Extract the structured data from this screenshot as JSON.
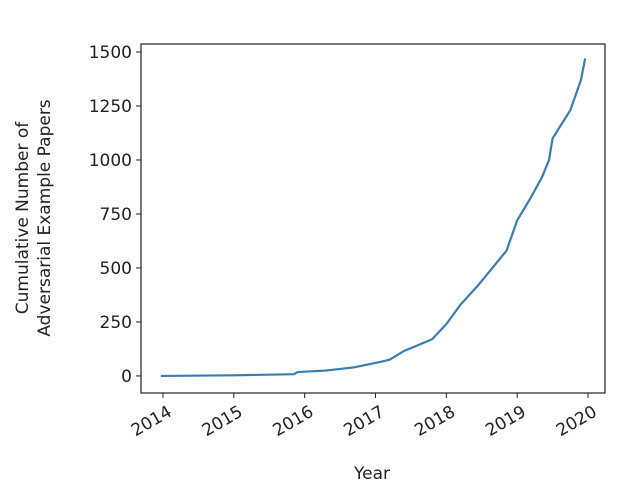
{
  "chart_data": {
    "type": "line",
    "xlabel": "Year",
    "ylabel": [
      "Cumulative Number of",
      "Adversarial Example Papers"
    ],
    "x": [
      2013.97,
      2015.0,
      2015.85,
      2015.9,
      2016.3,
      2016.7,
      2017.0,
      2017.2,
      2017.4,
      2017.8,
      2018.0,
      2018.2,
      2018.45,
      2018.6,
      2018.85,
      2019.0,
      2019.2,
      2019.35,
      2019.45,
      2019.5,
      2019.75,
      2019.9,
      2019.96
    ],
    "series": [
      {
        "color": "#3a7db5",
        "values": [
          0,
          3,
          8,
          18,
          25,
          40,
          60,
          75,
          115,
          170,
          240,
          330,
          420,
          480,
          580,
          720,
          830,
          920,
          1000,
          1100,
          1230,
          1370,
          1470
        ]
      }
    ],
    "xlim": [
      2013.69,
      2020.24
    ],
    "xticks": [
      2014,
      2015,
      2016,
      2017,
      2018,
      2019,
      2020
    ],
    "ylim": [
      -79,
      1537
    ],
    "yticks": [
      0,
      250,
      500,
      750,
      1000,
      1250,
      1500
    ]
  }
}
